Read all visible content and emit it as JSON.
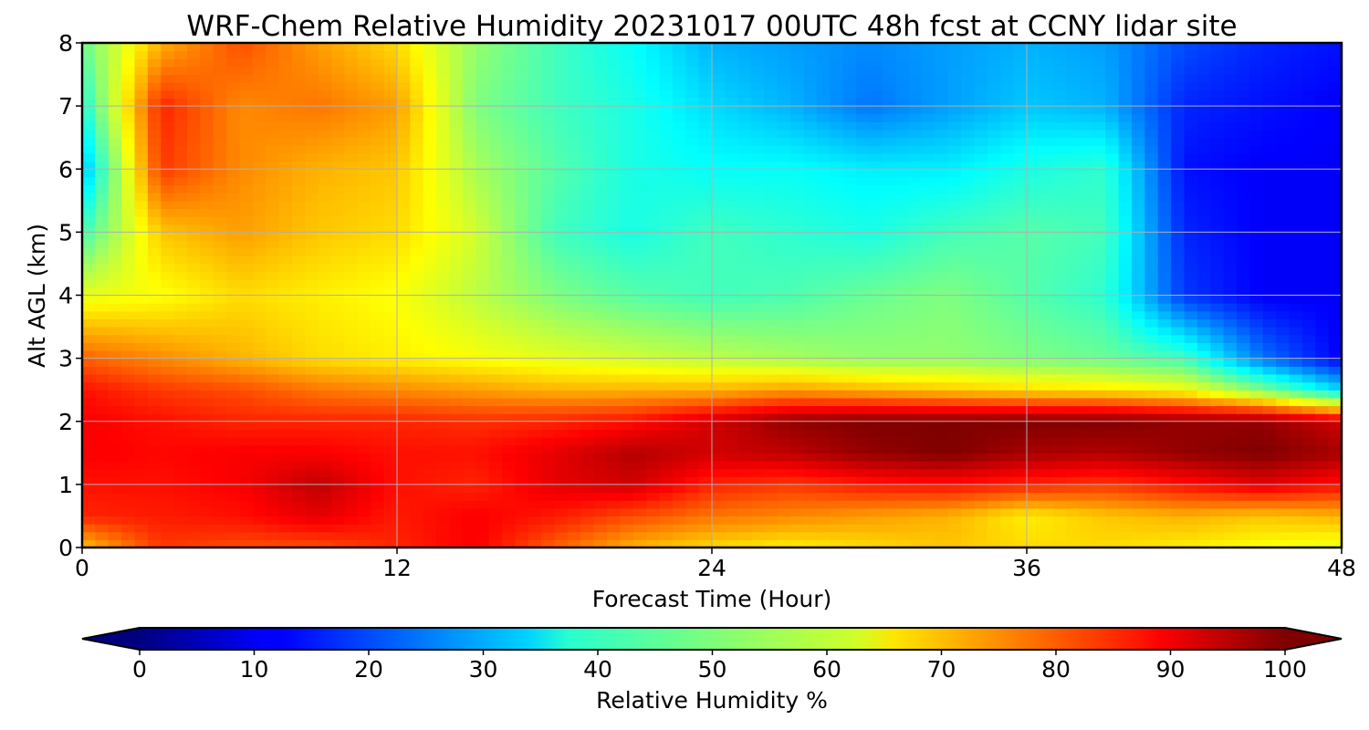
{
  "chart_data": {
    "type": "heatmap",
    "title": "WRF-Chem Relative Humidity 20231017 00UTC 48h fcst at CCNY lidar site",
    "xlabel": "Forecast Time (Hour)",
    "ylabel": "Alt AGL (km)",
    "xlim": [
      0,
      48
    ],
    "ylim": [
      0,
      8
    ],
    "xticks": [
      0,
      12,
      24,
      36,
      48
    ],
    "yticks": [
      0,
      1,
      2,
      3,
      4,
      5,
      6,
      7,
      8
    ],
    "grid": true,
    "colormap": "jet",
    "colorbar": {
      "label": "Relative Humidity %",
      "orientation": "horizontal",
      "placement": "bottom",
      "ticks": [
        0,
        10,
        20,
        30,
        40,
        50,
        60,
        70,
        80,
        90,
        100
      ],
      "range": [
        0,
        100
      ],
      "extend": "both"
    },
    "x": [
      0,
      3,
      6,
      9,
      12,
      15,
      18,
      21,
      24,
      27,
      30,
      33,
      36,
      39,
      42,
      45,
      48
    ],
    "y": [
      0,
      0.5,
      1,
      1.5,
      2,
      2.5,
      3,
      4,
      5,
      6,
      7,
      8
    ],
    "values": [
      [
        68,
        82,
        80,
        80,
        84,
        88,
        78,
        70,
        66,
        64,
        66,
        68,
        66,
        66,
        64,
        62,
        60
      ],
      [
        84,
        85,
        86,
        90,
        85,
        88,
        85,
        80,
        76,
        74,
        72,
        70,
        64,
        68,
        70,
        68,
        70
      ],
      [
        86,
        86,
        88,
        94,
        86,
        84,
        90,
        92,
        84,
        82,
        85,
        86,
        84,
        82,
        86,
        90,
        86
      ],
      [
        88,
        87,
        88,
        88,
        86,
        86,
        90,
        95,
        92,
        94,
        98,
        100,
        96,
        95,
        98,
        100,
        96
      ],
      [
        88,
        86,
        84,
        84,
        84,
        83,
        84,
        86,
        92,
        98,
        100,
        100,
        100,
        100,
        98,
        98,
        92
      ],
      [
        86,
        82,
        80,
        76,
        74,
        72,
        70,
        70,
        70,
        72,
        70,
        68,
        66,
        65,
        62,
        50,
        34
      ],
      [
        78,
        74,
        70,
        66,
        64,
        62,
        60,
        58,
        56,
        54,
        52,
        52,
        50,
        48,
        44,
        24,
        12
      ],
      [
        60,
        62,
        66,
        64,
        62,
        56,
        50,
        46,
        44,
        45,
        48,
        50,
        46,
        42,
        18,
        12,
        12
      ],
      [
        44,
        68,
        72,
        68,
        66,
        58,
        44,
        40,
        44,
        42,
        40,
        44,
        46,
        44,
        16,
        12,
        12
      ],
      [
        30,
        82,
        74,
        70,
        68,
        54,
        46,
        40,
        38,
        38,
        36,
        36,
        40,
        42,
        14,
        12,
        12
      ],
      [
        40,
        84,
        74,
        76,
        72,
        50,
        44,
        40,
        34,
        30,
        24,
        28,
        32,
        30,
        16,
        14,
        12
      ],
      [
        48,
        70,
        80,
        72,
        66,
        52,
        44,
        38,
        30,
        28,
        26,
        28,
        30,
        28,
        20,
        16,
        14
      ]
    ]
  }
}
